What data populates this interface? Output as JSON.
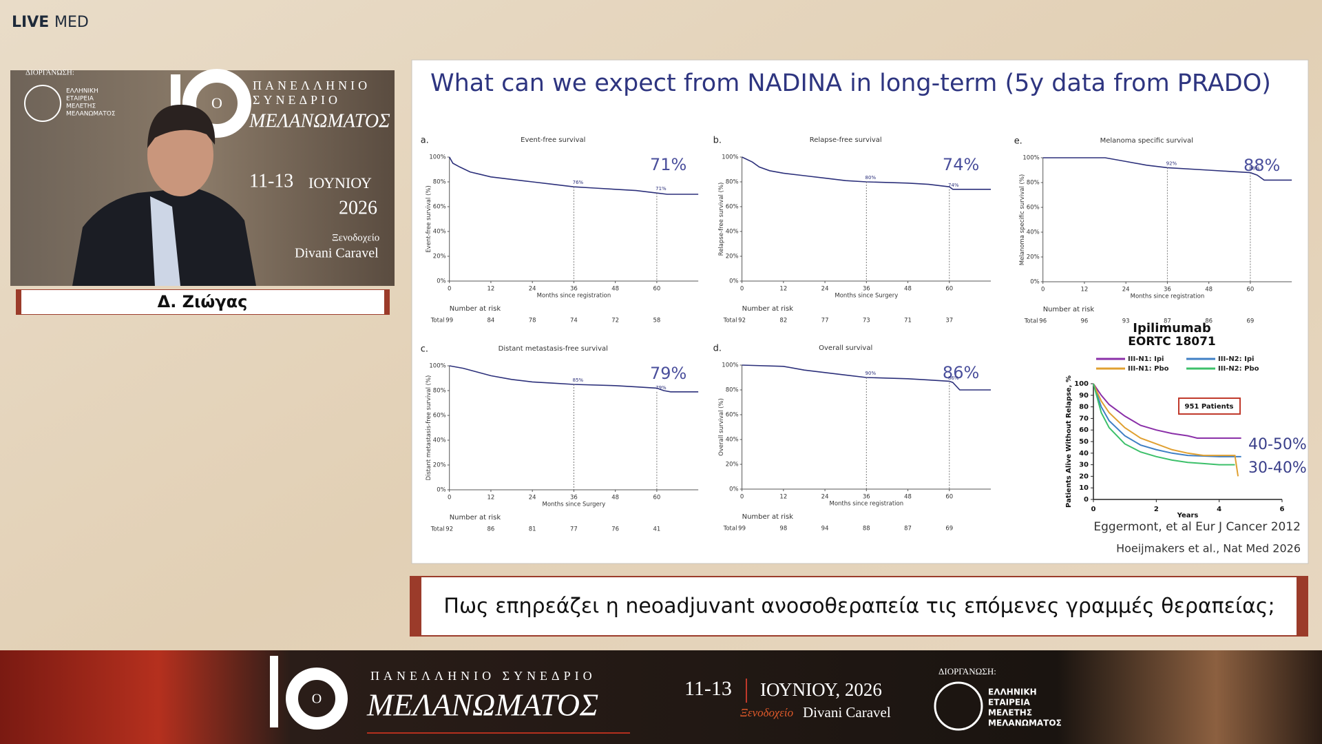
{
  "brand": {
    "live": "LIVE",
    "med": "MED"
  },
  "backdrop": {
    "organizer": "ΔΙΟΡΓΑΝΩΣΗ:",
    "society": [
      "ΕΛΛΗΝΙΚΗ",
      "ΕΤΑΙΡΕΙΑ",
      "ΜΕΛΕΤΗΣ",
      "ΜΕΛΑΝΩΜΑΤΟΣ"
    ],
    "logo_inner": "Ο",
    "line1": "ΠΑΝΕΛΛΗΝΙΟ",
    "line2": "ΣΥΝΕΔΡΙΟ",
    "name": "ΜΕΛΑΝΩΜΑΤΟΣ",
    "dates": "11-13",
    "month": "ΙΟΥΝΙΟΥ",
    "year": "2026",
    "venue1": "Ξενοδοχείο",
    "venue2": "Divani Caravel"
  },
  "speaker": {
    "name": "Δ. Ζιώγας"
  },
  "slide": {
    "title": "What can we expect from NADINA in long-term (5y data from PRADO)",
    "panels": [
      {
        "letter": "a.",
        "title": "Event-free survival",
        "headline": "71%",
        "ylabel": "Event-free survival (%)",
        "xlabel": "Months since registration",
        "yticks": [
          {
            "value": 0,
            "label": "0%"
          },
          {
            "value": 20,
            "label": "20%"
          },
          {
            "value": 40,
            "label": "40%"
          },
          {
            "value": 60,
            "label": "60%"
          },
          {
            "value": 80,
            "label": "80%"
          },
          {
            "value": 100,
            "label": "100%"
          }
        ],
        "xticks": [
          0,
          12,
          24,
          36,
          48,
          60
        ],
        "km_x": [
          0,
          1,
          3,
          6,
          9,
          12,
          18,
          24,
          30,
          36,
          42,
          48,
          54,
          60,
          63,
          72
        ],
        "km_y": [
          100,
          95,
          92,
          88,
          86,
          84,
          82,
          80,
          78,
          76,
          75,
          74,
          73,
          71,
          70,
          70
        ],
        "point_x": [
          36,
          60
        ],
        "point_y": [
          76,
          71
        ],
        "point_labels": [
          "76%",
          "71%"
        ],
        "risk_title": "Number at risk",
        "risk_label": "Total",
        "at_risk": [
          99,
          84,
          78,
          74,
          72,
          58
        ]
      },
      {
        "letter": "b.",
        "title": "Relapse-free survival",
        "headline": "74%",
        "ylabel": "Relapse-free survival (%)",
        "xlabel": "Months since Surgery",
        "yticks": [
          {
            "value": 0,
            "label": "0%"
          },
          {
            "value": 20,
            "label": "20%"
          },
          {
            "value": 40,
            "label": "40%"
          },
          {
            "value": 60,
            "label": "60%"
          },
          {
            "value": 80,
            "label": "80%"
          },
          {
            "value": 100,
            "label": "100%"
          }
        ],
        "xticks": [
          0,
          12,
          24,
          36,
          48,
          60
        ],
        "km_x": [
          0,
          3,
          5,
          8,
          12,
          18,
          24,
          30,
          36,
          48,
          54,
          60,
          61,
          72
        ],
        "km_y": [
          100,
          96,
          92,
          89,
          87,
          85,
          83,
          81,
          80,
          79,
          78,
          76,
          74,
          74
        ],
        "point_x": [
          36,
          60
        ],
        "point_y": [
          80,
          74
        ],
        "point_labels": [
          "80%",
          "74%"
        ],
        "risk_title": "Number at risk",
        "risk_label": "Total",
        "at_risk": [
          92,
          82,
          77,
          73,
          71,
          37
        ]
      },
      {
        "letter": "e.",
        "title": "Melanoma specific survival",
        "headline": "88%",
        "ylabel": "Melanoma specific survival (%)",
        "xlabel": "Months since registration",
        "yticks": [
          {
            "value": 0,
            "label": "0%"
          },
          {
            "value": 20,
            "label": "20%"
          },
          {
            "value": 40,
            "label": "40%"
          },
          {
            "value": 60,
            "label": "60%"
          },
          {
            "value": 80,
            "label": "80%"
          },
          {
            "value": 100,
            "label": "100%"
          }
        ],
        "xticks": [
          0,
          12,
          24,
          36,
          48,
          60
        ],
        "km_x": [
          0,
          18,
          24,
          30,
          36,
          48,
          54,
          60,
          62,
          64,
          72
        ],
        "km_y": [
          100,
          100,
          97,
          94,
          92,
          90,
          89,
          88,
          86,
          82,
          82
        ],
        "point_x": [
          36,
          60
        ],
        "point_y": [
          92,
          88
        ],
        "point_labels": [
          "92%",
          "88%"
        ],
        "risk_title": "Number at risk",
        "risk_label": "Total",
        "at_risk": [
          96,
          96,
          93,
          87,
          86,
          69
        ]
      },
      {
        "letter": "c.",
        "title": "Distant metastasis-free survival",
        "headline": "79%",
        "ylabel": "Distant metastasis-free survival (%)",
        "xlabel": "Months since Surgery",
        "yticks": [
          {
            "value": 0,
            "label": "0%"
          },
          {
            "value": 20,
            "label": "20%"
          },
          {
            "value": 40,
            "label": "40%"
          },
          {
            "value": 60,
            "label": "60%"
          },
          {
            "value": 80,
            "label": "80%"
          },
          {
            "value": 100,
            "label": "100%"
          }
        ],
        "xticks": [
          0,
          12,
          24,
          36,
          48,
          60
        ],
        "km_x": [
          0,
          4,
          8,
          12,
          18,
          24,
          30,
          36,
          48,
          54,
          60,
          62,
          64,
          72
        ],
        "km_y": [
          100,
          98,
          95,
          92,
          89,
          87,
          86,
          85,
          84,
          83,
          82,
          80,
          79,
          79
        ],
        "point_x": [
          36,
          60
        ],
        "point_y": [
          85,
          79
        ],
        "point_labels": [
          "85%",
          "79%"
        ],
        "risk_title": "Number at risk",
        "risk_label": "Total",
        "at_risk": [
          92,
          86,
          81,
          77,
          76,
          41
        ]
      },
      {
        "letter": "d.",
        "title": "Overall survival",
        "headline": "86%",
        "ylabel": "Overall survival (%)",
        "xlabel": "Months since registration",
        "yticks": [
          {
            "value": 0,
            "label": "0%"
          },
          {
            "value": 20,
            "label": "20%"
          },
          {
            "value": 40,
            "label": "40%"
          },
          {
            "value": 60,
            "label": "60%"
          },
          {
            "value": 80,
            "label": "80%"
          },
          {
            "value": 100,
            "label": "100%"
          }
        ],
        "xticks": [
          0,
          12,
          24,
          36,
          48,
          60
        ],
        "km_x": [
          0,
          12,
          18,
          24,
          30,
          36,
          48,
          54,
          60,
          61,
          63,
          72
        ],
        "km_y": [
          100,
          99,
          96,
          94,
          92,
          90,
          89,
          88,
          87,
          86,
          80,
          80
        ],
        "point_x": [
          36,
          60
        ],
        "point_y": [
          90,
          86
        ],
        "point_labels": [
          "90%",
          "86%"
        ],
        "risk_title": "Number at risk",
        "risk_label": "Total",
        "at_risk": [
          99,
          98,
          94,
          88,
          87,
          69
        ]
      }
    ],
    "ipi": {
      "type": "line",
      "title": "Ipilimumab",
      "subtitle": "EORTC 18071",
      "ylabel": "Patients Alive Without Relapse, %",
      "xlabel": "Years",
      "xlim": [
        0,
        6
      ],
      "ylim": [
        0,
        100
      ],
      "xticks": [
        0,
        2,
        4,
        6
      ],
      "yticks": [
        0,
        10,
        20,
        30,
        40,
        50,
        60,
        70,
        80,
        90,
        100
      ],
      "box": "951 Patients",
      "annotations": [
        "40-50%",
        "30-40%"
      ],
      "series": [
        {
          "name": "III-N1: Ipi",
          "color": "#8a2fa8",
          "x": [
            0,
            0.25,
            0.5,
            1,
            1.5,
            2,
            2.5,
            3,
            3.3,
            4,
            4.7
          ],
          "values": [
            100,
            90,
            82,
            72,
            64,
            60,
            57,
            55,
            53,
            53,
            53
          ]
        },
        {
          "name": "III-N2: Ipi",
          "color": "#3f7fc4",
          "x": [
            0,
            0.25,
            0.5,
            1,
            1.5,
            2,
            2.5,
            3,
            4,
            4.7
          ],
          "values": [
            100,
            80,
            68,
            55,
            47,
            43,
            40,
            38,
            37,
            37
          ]
        },
        {
          "name": "III-N1: Pbo",
          "color": "#e0a030",
          "x": [
            0,
            0.25,
            0.5,
            1,
            1.5,
            2,
            2.5,
            3,
            3.5,
            4,
            4.5,
            4.6
          ],
          "values": [
            100,
            85,
            75,
            62,
            53,
            48,
            43,
            40,
            38,
            38,
            38,
            20
          ]
        },
        {
          "name": "III-N2: Pbo",
          "color": "#3cc06a",
          "x": [
            0,
            0.25,
            0.5,
            1,
            1.5,
            2,
            2.5,
            3,
            3.5,
            4,
            4.5
          ],
          "values": [
            100,
            75,
            62,
            48,
            41,
            37,
            34,
            32,
            31,
            30,
            30
          ]
        }
      ]
    },
    "citations": [
      "Eggermont, et al Eur J Cancer 2012",
      "Hoeijmakers et al., Nat Med 2026"
    ]
  },
  "caption": "Πως επηρεάζει η neoadjuvant ανοσοθεραπεία τις επόμενες γραμμές θεραπείας;",
  "footer": {
    "logo_inner": "Ο",
    "line1": "ΠΑΝΕΛΛΗΝΙΟ ΣΥΝΕΔΡΙΟ",
    "name": "ΜΕΛΑΝΩΜΑΤΟΣ",
    "dates": "11-13",
    "month": "ΙΟΥΝΙΟΥ, 2026",
    "venue_label": "Ξενοδοχείο",
    "venue": "Divani Caravel",
    "organizer": "ΔΙΟΡΓΑΝΩΣΗ:",
    "society": [
      "ΕΛΛΗΝΙΚΗ",
      "ΕΤΑΙΡΕΙΑ",
      "ΜΕΛΕΤΗΣ",
      "ΜΕΛΑΝΩΜΑΤΟΣ"
    ]
  }
}
